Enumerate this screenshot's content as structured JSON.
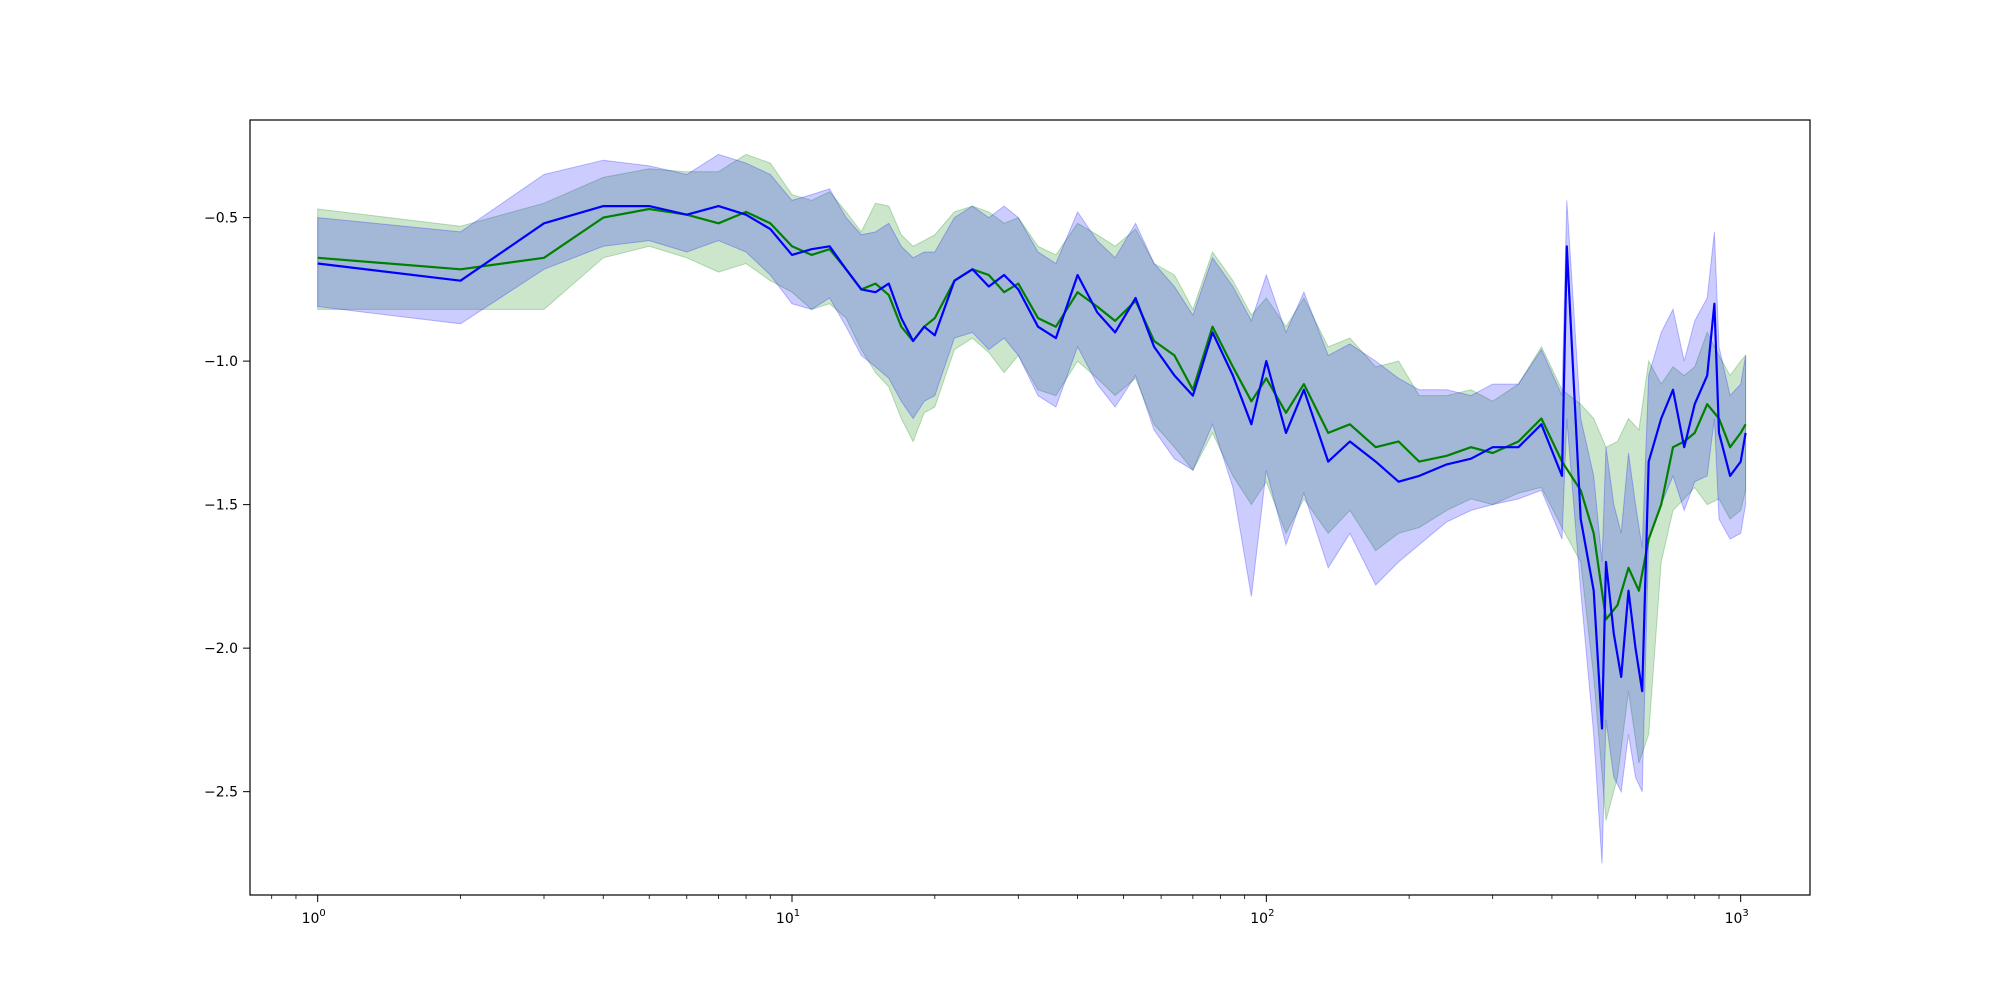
{
  "chart_data": {
    "type": "line",
    "title": "",
    "xlabel": "",
    "ylabel": "",
    "xscale": "log",
    "xlim": [
      0.72,
      1400
    ],
    "ylim": [
      -2.86,
      -0.16
    ],
    "grid": false,
    "legend": "none",
    "x_ticks": [
      {
        "value": 1,
        "base": "10",
        "exp": "0"
      },
      {
        "value": 10,
        "base": "10",
        "exp": "1"
      },
      {
        "value": 100,
        "base": "10",
        "exp": "2"
      },
      {
        "value": 1000,
        "base": "10",
        "exp": "3"
      }
    ],
    "y_ticks": [
      {
        "value": -0.5,
        "label": "−0.5"
      },
      {
        "value": -1.0,
        "label": "−1.0"
      },
      {
        "value": -1.5,
        "label": "−1.5"
      },
      {
        "value": -2.0,
        "label": "−2.0"
      },
      {
        "value": -2.5,
        "label": "−2.5"
      }
    ],
    "series": [
      {
        "color": "#008000",
        "band_color": "#008000",
        "band_opacity": 0.2,
        "x": [
          1,
          2,
          3,
          4,
          5,
          6,
          7,
          8,
          9,
          10,
          11,
          12,
          13,
          14,
          15,
          16,
          17,
          18,
          19,
          20,
          22,
          24,
          26,
          28,
          30,
          33,
          36,
          40,
          44,
          48,
          53,
          58,
          64,
          70,
          77,
          85,
          93,
          100,
          110,
          120,
          135,
          150,
          170,
          190,
          210,
          240,
          270,
          300,
          340,
          380,
          420,
          460,
          490,
          520,
          550,
          580,
          610,
          640,
          680,
          720,
          760,
          800,
          850,
          900,
          950,
          1000,
          1024
        ],
        "y": [
          -0.64,
          -0.68,
          -0.64,
          -0.5,
          -0.47,
          -0.49,
          -0.52,
          -0.48,
          -0.52,
          -0.6,
          -0.63,
          -0.61,
          -0.68,
          -0.75,
          -0.73,
          -0.77,
          -0.88,
          -0.93,
          -0.88,
          -0.85,
          -0.72,
          -0.68,
          -0.7,
          -0.76,
          -0.73,
          -0.85,
          -0.88,
          -0.76,
          -0.81,
          -0.86,
          -0.79,
          -0.93,
          -0.98,
          -1.1,
          -0.88,
          -1.02,
          -1.14,
          -1.06,
          -1.18,
          -1.08,
          -1.25,
          -1.22,
          -1.3,
          -1.28,
          -1.35,
          -1.33,
          -1.3,
          -1.32,
          -1.28,
          -1.2,
          -1.35,
          -1.45,
          -1.6,
          -1.9,
          -1.85,
          -1.72,
          -1.8,
          -1.62,
          -1.5,
          -1.3,
          -1.28,
          -1.25,
          -1.15,
          -1.2,
          -1.3,
          -1.25,
          -1.22
        ],
        "lower": [
          -0.82,
          -0.82,
          -0.82,
          -0.64,
          -0.6,
          -0.64,
          -0.69,
          -0.66,
          -0.72,
          -0.76,
          -0.82,
          -0.8,
          -0.85,
          -0.96,
          -1.04,
          -1.09,
          -1.2,
          -1.28,
          -1.18,
          -1.16,
          -0.96,
          -0.92,
          -0.97,
          -1.04,
          -0.98,
          -1.1,
          -1.12,
          -1.0,
          -1.06,
          -1.12,
          -1.06,
          -1.22,
          -1.3,
          -1.38,
          -1.25,
          -1.4,
          -1.5,
          -1.42,
          -1.6,
          -1.48,
          -1.6,
          -1.52,
          -1.66,
          -1.6,
          -1.58,
          -1.52,
          -1.48,
          -1.5,
          -1.46,
          -1.44,
          -1.58,
          -1.7,
          -2.1,
          -2.6,
          -2.45,
          -2.15,
          -2.4,
          -2.3,
          -1.7,
          -1.52,
          -1.48,
          -1.44,
          -1.5,
          -1.48,
          -1.55,
          -1.52,
          -1.45
        ],
        "upper": [
          -0.47,
          -0.53,
          -0.45,
          -0.36,
          -0.33,
          -0.34,
          -0.34,
          -0.28,
          -0.31,
          -0.42,
          -0.44,
          -0.41,
          -0.48,
          -0.55,
          -0.45,
          -0.46,
          -0.56,
          -0.6,
          -0.58,
          -0.56,
          -0.48,
          -0.46,
          -0.48,
          -0.52,
          -0.5,
          -0.6,
          -0.63,
          -0.52,
          -0.56,
          -0.6,
          -0.54,
          -0.66,
          -0.7,
          -0.82,
          -0.62,
          -0.72,
          -0.84,
          -0.78,
          -0.88,
          -0.78,
          -0.95,
          -0.92,
          -1.02,
          -1.0,
          -1.12,
          -1.12,
          -1.1,
          -1.14,
          -1.08,
          -0.95,
          -1.1,
          -1.15,
          -1.2,
          -1.3,
          -1.28,
          -1.2,
          -1.24,
          -1.0,
          -1.08,
          -1.02,
          -1.05,
          -1.02,
          -0.9,
          -0.98,
          -1.05,
          -1.0,
          -0.98
        ]
      },
      {
        "color": "#0000ff",
        "band_color": "#0000ff",
        "band_opacity": 0.2,
        "x": [
          1,
          2,
          3,
          4,
          5,
          6,
          7,
          8,
          9,
          10,
          11,
          12,
          13,
          14,
          15,
          16,
          17,
          18,
          19,
          20,
          22,
          24,
          26,
          28,
          30,
          33,
          36,
          40,
          44,
          48,
          53,
          58,
          64,
          70,
          77,
          85,
          93,
          100,
          110,
          120,
          135,
          150,
          170,
          190,
          210,
          240,
          270,
          300,
          340,
          380,
          420,
          430,
          460,
          490,
          510,
          520,
          540,
          560,
          580,
          600,
          620,
          640,
          680,
          720,
          760,
          800,
          850,
          880,
          900,
          950,
          1000,
          1024
        ],
        "y": [
          -0.66,
          -0.72,
          -0.52,
          -0.46,
          -0.46,
          -0.49,
          -0.46,
          -0.49,
          -0.54,
          -0.63,
          -0.61,
          -0.6,
          -0.68,
          -0.75,
          -0.76,
          -0.73,
          -0.85,
          -0.93,
          -0.88,
          -0.91,
          -0.72,
          -0.68,
          -0.74,
          -0.7,
          -0.75,
          -0.88,
          -0.92,
          -0.7,
          -0.83,
          -0.9,
          -0.78,
          -0.95,
          -1.05,
          -1.12,
          -0.9,
          -1.05,
          -1.22,
          -1.0,
          -1.25,
          -1.1,
          -1.35,
          -1.28,
          -1.35,
          -1.42,
          -1.4,
          -1.36,
          -1.34,
          -1.3,
          -1.3,
          -1.22,
          -1.4,
          -0.6,
          -1.55,
          -1.8,
          -2.28,
          -1.7,
          -1.95,
          -2.1,
          -1.8,
          -2.0,
          -2.15,
          -1.35,
          -1.2,
          -1.1,
          -1.3,
          -1.15,
          -1.05,
          -0.8,
          -1.25,
          -1.4,
          -1.35,
          -1.25
        ],
        "lower": [
          -0.81,
          -0.87,
          -0.68,
          -0.6,
          -0.58,
          -0.62,
          -0.58,
          -0.62,
          -0.7,
          -0.8,
          -0.82,
          -0.78,
          -0.88,
          -0.98,
          -1.02,
          -1.06,
          -1.14,
          -1.2,
          -1.14,
          -1.12,
          -0.92,
          -0.9,
          -0.96,
          -0.92,
          -0.98,
          -1.12,
          -1.16,
          -0.95,
          -1.08,
          -1.16,
          -1.05,
          -1.24,
          -1.34,
          -1.38,
          -1.22,
          -1.44,
          -1.82,
          -1.38,
          -1.64,
          -1.46,
          -1.72,
          -1.6,
          -1.78,
          -1.7,
          -1.64,
          -1.56,
          -1.52,
          -1.5,
          -1.48,
          -1.45,
          -1.62,
          -1.2,
          -1.8,
          -2.3,
          -2.75,
          -2.25,
          -2.45,
          -2.5,
          -2.3,
          -2.45,
          -2.5,
          -1.62,
          -1.5,
          -1.4,
          -1.52,
          -1.42,
          -1.4,
          -1.2,
          -1.55,
          -1.62,
          -1.6,
          -1.5
        ],
        "upper": [
          -0.5,
          -0.55,
          -0.35,
          -0.3,
          -0.32,
          -0.35,
          -0.28,
          -0.31,
          -0.35,
          -0.44,
          -0.42,
          -0.4,
          -0.5,
          -0.56,
          -0.55,
          -0.52,
          -0.6,
          -0.64,
          -0.62,
          -0.62,
          -0.5,
          -0.46,
          -0.5,
          -0.46,
          -0.5,
          -0.62,
          -0.66,
          -0.48,
          -0.58,
          -0.64,
          -0.52,
          -0.66,
          -0.74,
          -0.84,
          -0.64,
          -0.74,
          -0.86,
          -0.7,
          -0.9,
          -0.76,
          -0.98,
          -0.94,
          -1.0,
          -1.06,
          -1.1,
          -1.1,
          -1.12,
          -1.08,
          -1.08,
          -0.96,
          -1.12,
          -0.44,
          -1.2,
          -1.4,
          -1.7,
          -1.3,
          -1.5,
          -1.6,
          -1.32,
          -1.5,
          -1.65,
          -1.05,
          -0.9,
          -0.82,
          -1.0,
          -0.86,
          -0.78,
          -0.55,
          -0.95,
          -1.12,
          -1.08,
          -0.98
        ]
      }
    ]
  }
}
